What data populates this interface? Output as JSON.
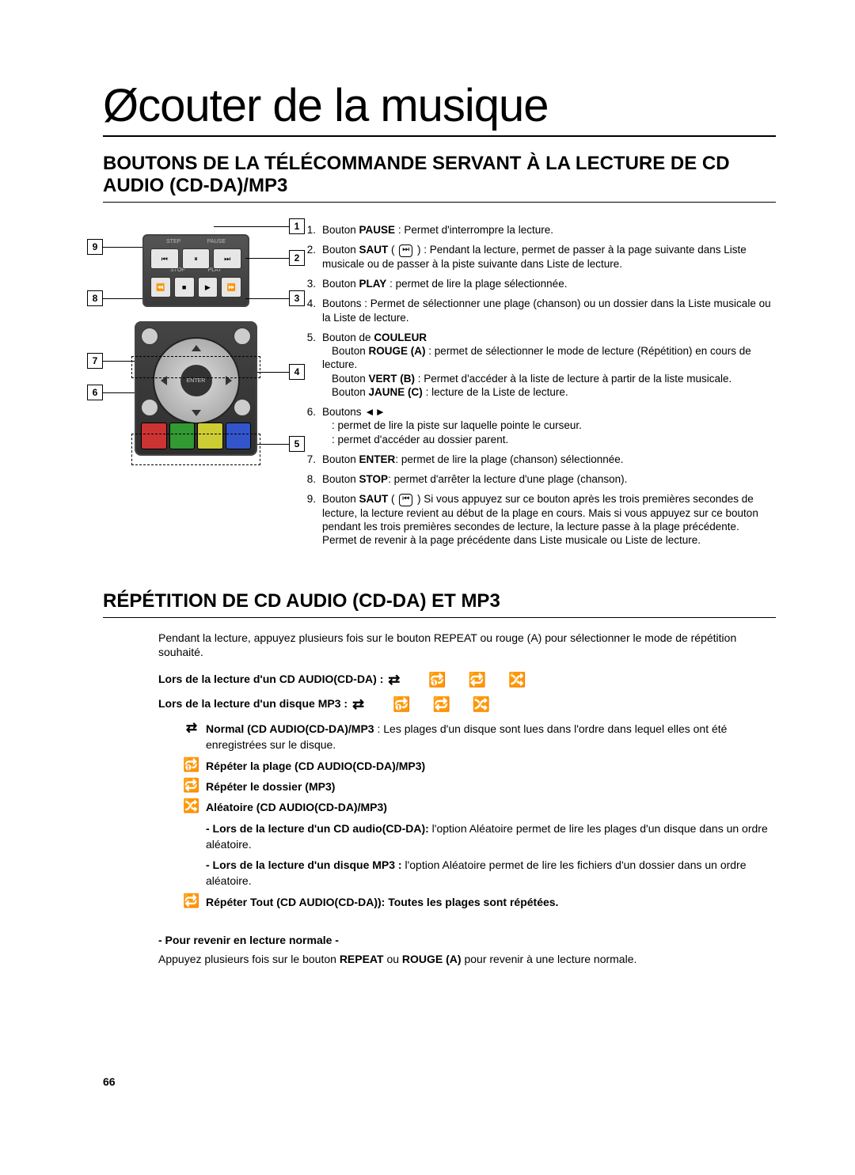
{
  "title": "Øcouter de la musique",
  "section1_title": "BOUTONS DE LA TÉLÉCOMMANDE SERVANT À LA LECTURE DE CD AUDIO (CD-DA)/MP3",
  "section2_title": "RÉPÉTITION DE CD AUDIO (CD-DA) ET MP3",
  "page_number": "66",
  "remote1_labels": {
    "step": "STEP",
    "pause": "PAUSE",
    "stop": "STOP",
    "play": "PLAY"
  },
  "buttons_top": {
    "b1": "⏮",
    "b2": "⏸",
    "b3": "⏭",
    "b4": "⏪",
    "b5": "■",
    "b6": "▶",
    "b7": "⏩"
  },
  "dpad_center": "ENTER",
  "callouts": {
    "c1": "1",
    "c2": "2",
    "c3": "3",
    "c4": "4",
    "c5": "5",
    "c6": "6",
    "c7": "7",
    "c8": "8",
    "c9": "9"
  },
  "list": {
    "n1": "1.",
    "t1a": "Bouton ",
    "t1b": "PAUSE",
    "t1c": " : Permet d'interrompre la lecture.",
    "n2": "2.",
    "t2a": "Bouton ",
    "t2b": "SAUT",
    "t2c": " ( ",
    "t2d": " )  : Pendant la lecture, permet de passer à la page suivante dans Liste musicale ou de passer à la piste suivante dans Liste de lecture.",
    "n3": "3.",
    "t3a": "Bouton ",
    "t3b": "PLAY",
    "t3c": " : permet de lire la plage sélectionnée.",
    "n4": "4.",
    "t4a": "Boutons        : Permet de sélectionner une plage (chanson) ou un dossier dans la Liste musicale ou la Liste de lecture.",
    "n5": "5.",
    "t5a": "Bouton de ",
    "t5b": "COULEUR",
    "t5c": "Bouton ",
    "t5d": "ROUGE (A)",
    "t5e": " : permet de sélectionner le mode de lecture (Répétition) en cours de lecture.",
    "t5f": "Bouton ",
    "t5g": "VERT (B)",
    "t5h": " : Permet d'accéder à la liste de lecture à partir de la liste musicale.",
    "t5i": "Bouton ",
    "t5j": "JAUNE (C)",
    "t5k": " : lecture de la Liste de lecture.",
    "n6": "6.",
    "t6a": "Boutons ◄►",
    "t6b": ": permet de lire la piste sur laquelle pointe le curseur.",
    "t6c": ": permet d'accéder au dossier parent.",
    "n7": "7.",
    "t7a": "Bouton ",
    "t7b": "ENTER",
    "t7c": ": permet de lire la plage (chanson) sélectionnée.",
    "n8": "8.",
    "t8a": "Bouton ",
    "t8b": "STOP",
    "t8c": ": permet d'arrêter la lecture d'une plage (chanson).",
    "n9": "9.",
    "t9a": "Bouton ",
    "t9b": "SAUT",
    "t9c": " ( ",
    "t9d": " ) Si vous appuyez sur ce bouton après les trois premières secondes de lecture, la lecture revient au début de la plage en cours. Mais si vous appuyez sur ce bouton pendant les trois premières secondes de lecture, la lecture passe à la plage précédente.",
    "t9e": "Permet de revenir à la page précédente dans Liste musicale ou Liste de lecture."
  },
  "icons": {
    "skip_fwd": "⏭",
    "skip_back": "⏮",
    "normal": "⇄",
    "repeat_one": "🔂",
    "repeat_all": "🔁",
    "repeat_folder": "🔁",
    "shuffle": "🔀",
    "left_tri": "◄",
    "right_tri": "►"
  },
  "intro": "Pendant la lecture, appuyez plusieurs fois sur le bouton REPEAT ou rouge (A) pour sélectionner le mode de répétition souhaité.",
  "mode1_label": "Lors de la lecture d'un CD AUDIO(CD-DA) :",
  "mode2_label": "Lors de la lecture d'un disque MP3 :",
  "desc": {
    "d1a": "Normal (CD AUDIO(CD-DA)/MP3",
    "d1b": " : Les plages d'un disque sont lues dans l'ordre dans lequel elles ont été enregistrées sur le disque.",
    "d2": "Répéter la plage (CD AUDIO(CD-DA)/MP3)",
    "d3": "Répéter le dossier (MP3)",
    "d4": "Aléatoire (CD AUDIO(CD-DA)/MP3)",
    "d5a": "- Lors de la lecture d'un CD audio(CD-DA):",
    "d5b": " l'option Aléatoire permet de lire les plages d'un disque dans un ordre aléatoire.",
    "d6a": "- Lors de la lecture d'un disque MP3 :",
    "d6b": " l'option Aléatoire permet de lire les fichiers d'un dossier dans un ordre aléatoire.",
    "d7": "Répéter Tout (CD AUDIO(CD-DA)): Toutes les plages sont répétées."
  },
  "return_title": "- Pour revenir en lecture normale -",
  "return_text_a": "Appuyez plusieurs fois sur le bouton ",
  "return_text_b": "REPEAT",
  "return_text_c": " ou ",
  "return_text_d": "ROUGE (A)",
  "return_text_e": " pour revenir à une lecture normale."
}
